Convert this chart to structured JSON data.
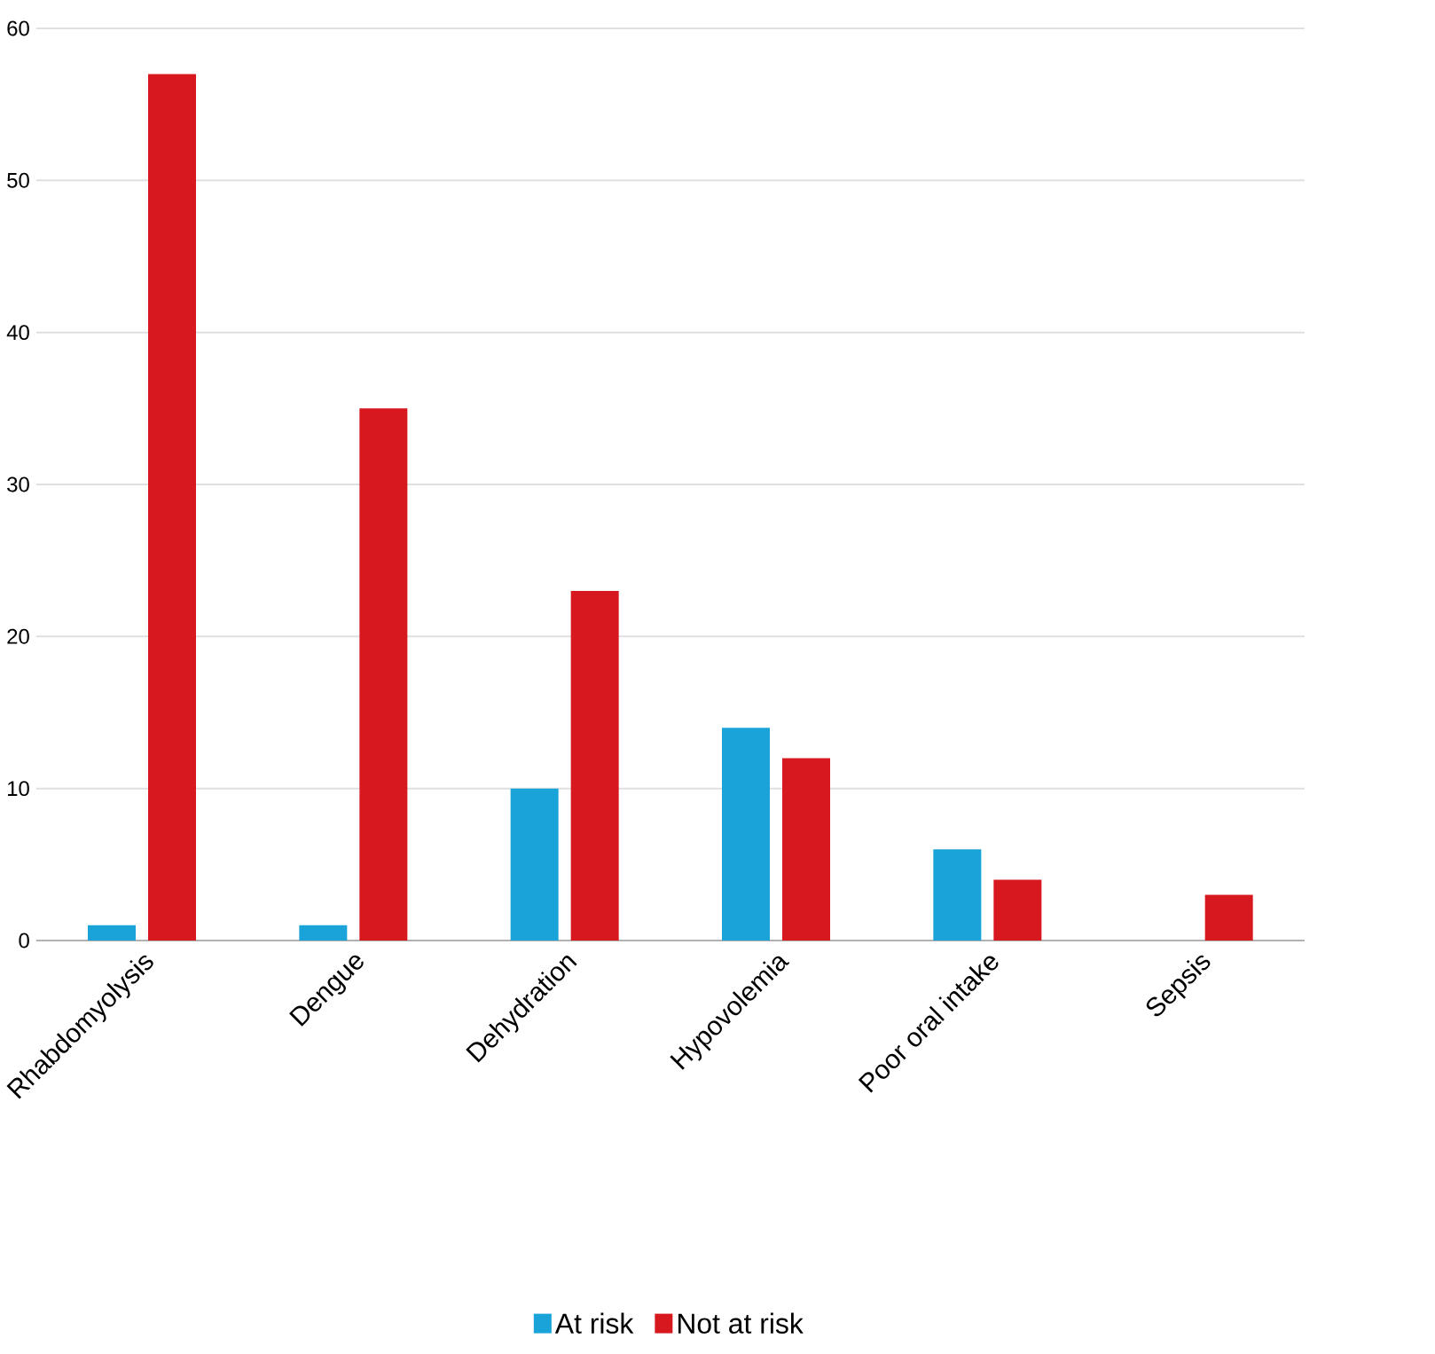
{
  "chart_data": {
    "type": "bar",
    "categories": [
      "Rhabdomyolysis",
      "Dengue",
      "Dehydration",
      "Hypovolemia",
      "Poor oral intake",
      "Sepsis"
    ],
    "series": [
      {
        "name": "At risk",
        "color": "#1aa3d9",
        "values": [
          1,
          1,
          10,
          14,
          6,
          0
        ]
      },
      {
        "name": "Not at risk",
        "color": "#d7191f",
        "values": [
          57,
          35,
          23,
          12,
          4,
          3
        ]
      }
    ],
    "ylim": [
      0,
      60
    ],
    "yticks": [
      0,
      10,
      20,
      30,
      40,
      50,
      60
    ],
    "grid": "y",
    "legend": "bottom"
  }
}
